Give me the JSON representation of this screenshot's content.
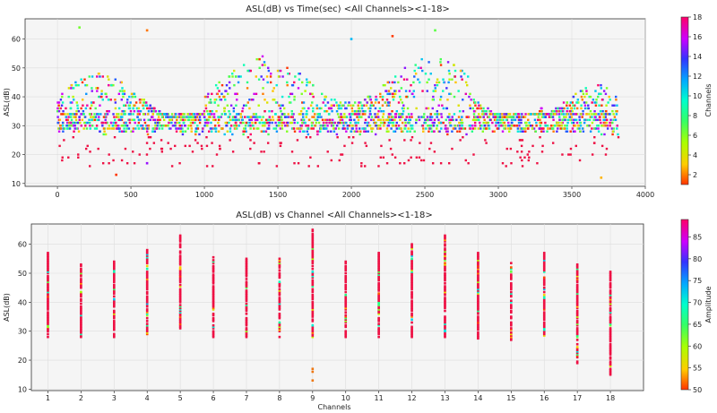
{
  "chart_data": [
    {
      "type": "scatter",
      "title": "ASL(dB) vs Time(sec) <All Channels><1-18>",
      "xlabel": "",
      "ylabel": "ASL(dB)",
      "xlim": [
        -220,
        4000
      ],
      "ylim": [
        9,
        67
      ],
      "xticks": [
        0,
        500,
        1000,
        1500,
        2000,
        2500,
        3000,
        3500,
        4000
      ],
      "yticks": [
        10,
        20,
        30,
        40,
        50,
        60
      ],
      "grid": true,
      "colorbar": {
        "label": "Channels",
        "range": [
          1,
          18
        ],
        "ticks": [
          2,
          4,
          6,
          8,
          10,
          12,
          14,
          16,
          18
        ]
      },
      "point_density_profile": {
        "x_range": [
          0,
          3820
        ],
        "dense_band_asl": [
          28,
          34
        ],
        "typical_max_asl": [
          38,
          50
        ],
        "peak_points": [
          {
            "x": 150,
            "y": 64
          },
          {
            "x": 610,
            "y": 63
          },
          {
            "x": 2000,
            "y": 60
          },
          {
            "x": 2280,
            "y": 61
          },
          {
            "x": 2570,
            "y": 63
          }
        ],
        "low_points": [
          {
            "x": 400,
            "y": 13
          },
          {
            "x": 610,
            "y": 17
          },
          {
            "x": 3700,
            "y": 12
          }
        ]
      }
    },
    {
      "type": "scatter",
      "title": "ASL(dB) vs Channel <All Channels><1-18>",
      "xlabel": "Channels",
      "ylabel": "ASL(dB)",
      "xlim": [
        0.5,
        19
      ],
      "ylim": [
        9.5,
        67
      ],
      "xticks": [
        1,
        2,
        3,
        4,
        5,
        6,
        7,
        8,
        9,
        10,
        11,
        12,
        13,
        14,
        15,
        16,
        17,
        18
      ],
      "yticks": [
        10,
        20,
        30,
        40,
        50,
        60
      ],
      "grid": true,
      "colorbar": {
        "label": "Amplitude",
        "range": [
          50,
          89
        ],
        "ticks": [
          50,
          55,
          60,
          65,
          70,
          75,
          80,
          85
        ]
      },
      "channels": [
        {
          "channel": 1,
          "min": 28,
          "max": 57
        },
        {
          "channel": 2,
          "min": 28,
          "max": 53
        },
        {
          "channel": 3,
          "min": 28,
          "max": 54
        },
        {
          "channel": 4,
          "min": 29,
          "max": 58
        },
        {
          "channel": 5,
          "min": 31,
          "max": 63
        },
        {
          "channel": 6,
          "min": 28,
          "max": 56
        },
        {
          "channel": 7,
          "min": 28,
          "max": 55
        },
        {
          "channel": 8,
          "min": 28,
          "max": 55
        },
        {
          "channel": 9,
          "min": 28,
          "max": 65,
          "extra": [
            13,
            16,
            17
          ]
        },
        {
          "channel": 10,
          "min": 28,
          "max": 54
        },
        {
          "channel": 11,
          "min": 28,
          "max": 57
        },
        {
          "channel": 12,
          "min": 28,
          "max": 60
        },
        {
          "channel": 13,
          "min": 28,
          "max": 63
        },
        {
          "channel": 14,
          "min": 27,
          "max": 57
        },
        {
          "channel": 15,
          "min": 27,
          "max": 54
        },
        {
          "channel": 16,
          "min": 28,
          "max": 57
        },
        {
          "channel": 17,
          "min": 19,
          "max": 53
        },
        {
          "channel": 18,
          "min": 15,
          "max": 51
        }
      ]
    }
  ]
}
